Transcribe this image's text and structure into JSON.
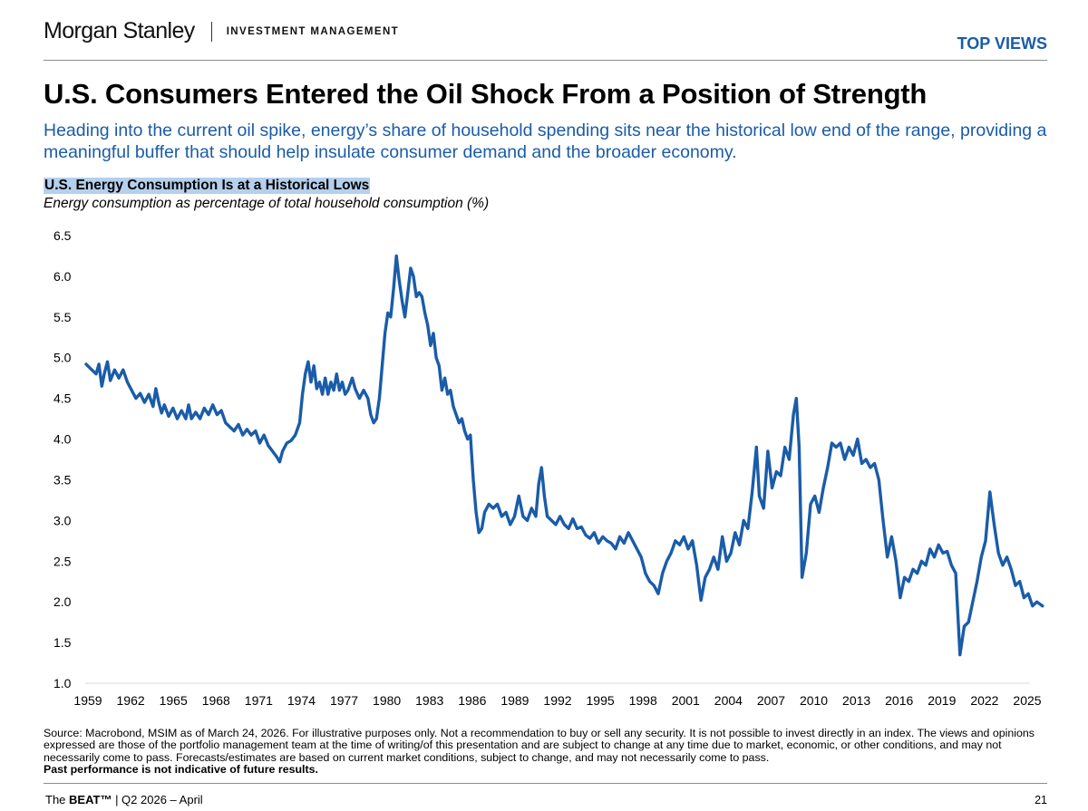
{
  "header": {
    "brand_name": "Morgan Stanley",
    "brand_sub": "INVESTMENT MANAGEMENT",
    "section": "TOP VIEWS"
  },
  "title": "U.S. Consumers Entered the Oil Shock From a Position of Strength",
  "subtitle": "Heading into the current oil spike, energy’s share of household spending sits near the historical low end of the range, providing a meaningful buffer that should help insulate consumer demand and the broader economy.",
  "chart_data": {
    "type": "line",
    "title": "U.S. Energy Consumption Is at a Historical Lows",
    "subtitle": "Energy consumption as percentage of total household consumption (%)",
    "xlabel": "",
    "ylabel": "",
    "xlim": [
      1959,
      2026.2
    ],
    "ylim": [
      1.0,
      6.5
    ],
    "yticks": [
      "6.5",
      "6.0",
      "5.5",
      "5.0",
      "4.5",
      "4.0",
      "3.5",
      "3.0",
      "2.5",
      "2.0",
      "1.5",
      "1.0"
    ],
    "xticks": [
      "1959",
      "1962",
      "1965",
      "1968",
      "1971",
      "1974",
      "1977",
      "1980",
      "1983",
      "1986",
      "1989",
      "1992",
      "1995",
      "1998",
      "2001",
      "2004",
      "2007",
      "2010",
      "2013",
      "2016",
      "2019",
      "2022",
      "2025"
    ],
    "grid": false,
    "legend": "none",
    "color": "#1a5ca8",
    "series": [
      {
        "points": [
          [
            1959.0,
            4.92
          ],
          [
            1959.4,
            4.85
          ],
          [
            1959.7,
            4.8
          ],
          [
            1959.9,
            4.92
          ],
          [
            1960.1,
            4.65
          ],
          [
            1960.3,
            4.82
          ],
          [
            1960.5,
            4.95
          ],
          [
            1960.7,
            4.72
          ],
          [
            1961.0,
            4.85
          ],
          [
            1961.3,
            4.75
          ],
          [
            1961.6,
            4.85
          ],
          [
            1961.9,
            4.7
          ],
          [
            1962.2,
            4.6
          ],
          [
            1962.5,
            4.5
          ],
          [
            1962.8,
            4.56
          ],
          [
            1963.1,
            4.45
          ],
          [
            1963.4,
            4.55
          ],
          [
            1963.7,
            4.4
          ],
          [
            1963.9,
            4.62
          ],
          [
            1964.1,
            4.45
          ],
          [
            1964.3,
            4.32
          ],
          [
            1964.5,
            4.42
          ],
          [
            1964.8,
            4.28
          ],
          [
            1965.1,
            4.38
          ],
          [
            1965.4,
            4.25
          ],
          [
            1965.7,
            4.35
          ],
          [
            1966.0,
            4.25
          ],
          [
            1966.2,
            4.42
          ],
          [
            1966.4,
            4.25
          ],
          [
            1966.7,
            4.33
          ],
          [
            1967.0,
            4.25
          ],
          [
            1967.3,
            4.38
          ],
          [
            1967.6,
            4.3
          ],
          [
            1967.9,
            4.42
          ],
          [
            1968.2,
            4.3
          ],
          [
            1968.5,
            4.35
          ],
          [
            1968.8,
            4.2
          ],
          [
            1969.1,
            4.15
          ],
          [
            1969.4,
            4.1
          ],
          [
            1969.7,
            4.18
          ],
          [
            1970.0,
            4.05
          ],
          [
            1970.3,
            4.12
          ],
          [
            1970.6,
            4.05
          ],
          [
            1970.9,
            4.1
          ],
          [
            1971.2,
            3.95
          ],
          [
            1971.5,
            4.05
          ],
          [
            1971.8,
            3.92
          ],
          [
            1972.1,
            3.85
          ],
          [
            1972.4,
            3.78
          ],
          [
            1972.6,
            3.72
          ],
          [
            1972.8,
            3.85
          ],
          [
            1973.1,
            3.95
          ],
          [
            1973.4,
            3.98
          ],
          [
            1973.7,
            4.05
          ],
          [
            1974.0,
            4.2
          ],
          [
            1974.2,
            4.55
          ],
          [
            1974.4,
            4.8
          ],
          [
            1974.6,
            4.95
          ],
          [
            1974.8,
            4.7
          ],
          [
            1975.0,
            4.9
          ],
          [
            1975.2,
            4.62
          ],
          [
            1975.4,
            4.7
          ],
          [
            1975.6,
            4.55
          ],
          [
            1975.8,
            4.75
          ],
          [
            1976.0,
            4.55
          ],
          [
            1976.2,
            4.7
          ],
          [
            1976.4,
            4.6
          ],
          [
            1976.6,
            4.8
          ],
          [
            1976.8,
            4.6
          ],
          [
            1977.0,
            4.7
          ],
          [
            1977.2,
            4.55
          ],
          [
            1977.4,
            4.6
          ],
          [
            1977.7,
            4.75
          ],
          [
            1977.9,
            4.62
          ],
          [
            1978.2,
            4.5
          ],
          [
            1978.5,
            4.6
          ],
          [
            1978.8,
            4.5
          ],
          [
            1979.0,
            4.3
          ],
          [
            1979.2,
            4.2
          ],
          [
            1979.4,
            4.25
          ],
          [
            1979.6,
            4.5
          ],
          [
            1979.8,
            4.9
          ],
          [
            1980.0,
            5.3
          ],
          [
            1980.2,
            5.55
          ],
          [
            1980.4,
            5.5
          ],
          [
            1980.6,
            5.85
          ],
          [
            1980.8,
            6.25
          ],
          [
            1981.0,
            5.95
          ],
          [
            1981.2,
            5.7
          ],
          [
            1981.4,
            5.5
          ],
          [
            1981.6,
            5.8
          ],
          [
            1981.8,
            6.1
          ],
          [
            1982.0,
            6.0
          ],
          [
            1982.2,
            5.75
          ],
          [
            1982.4,
            5.8
          ],
          [
            1982.6,
            5.75
          ],
          [
            1982.8,
            5.55
          ],
          [
            1983.0,
            5.4
          ],
          [
            1983.2,
            5.15
          ],
          [
            1983.4,
            5.3
          ],
          [
            1983.6,
            5.0
          ],
          [
            1983.8,
            4.9
          ],
          [
            1984.0,
            4.6
          ],
          [
            1984.2,
            4.75
          ],
          [
            1984.4,
            4.55
          ],
          [
            1984.6,
            4.6
          ],
          [
            1984.8,
            4.4
          ],
          [
            1985.0,
            4.3
          ],
          [
            1985.2,
            4.2
          ],
          [
            1985.4,
            4.25
          ],
          [
            1985.6,
            4.1
          ],
          [
            1985.8,
            4.0
          ],
          [
            1986.0,
            4.05
          ],
          [
            1986.2,
            3.5
          ],
          [
            1986.4,
            3.1
          ],
          [
            1986.6,
            2.85
          ],
          [
            1986.8,
            2.9
          ],
          [
            1987.0,
            3.1
          ],
          [
            1987.3,
            3.2
          ],
          [
            1987.6,
            3.15
          ],
          [
            1987.9,
            3.2
          ],
          [
            1988.2,
            3.05
          ],
          [
            1988.5,
            3.1
          ],
          [
            1988.8,
            2.95
          ],
          [
            1989.1,
            3.05
          ],
          [
            1989.4,
            3.3
          ],
          [
            1989.7,
            3.05
          ],
          [
            1990.0,
            3.0
          ],
          [
            1990.3,
            3.15
          ],
          [
            1990.6,
            3.05
          ],
          [
            1990.8,
            3.45
          ],
          [
            1991.0,
            3.65
          ],
          [
            1991.2,
            3.3
          ],
          [
            1991.4,
            3.05
          ],
          [
            1991.7,
            3.0
          ],
          [
            1992.0,
            2.95
          ],
          [
            1992.3,
            3.05
          ],
          [
            1992.6,
            2.95
          ],
          [
            1992.9,
            2.9
          ],
          [
            1993.2,
            3.02
          ],
          [
            1993.5,
            2.9
          ],
          [
            1993.8,
            2.92
          ],
          [
            1994.1,
            2.82
          ],
          [
            1994.4,
            2.78
          ],
          [
            1994.7,
            2.85
          ],
          [
            1995.0,
            2.72
          ],
          [
            1995.3,
            2.8
          ],
          [
            1995.6,
            2.75
          ],
          [
            1995.9,
            2.72
          ],
          [
            1996.2,
            2.65
          ],
          [
            1996.5,
            2.8
          ],
          [
            1996.8,
            2.72
          ],
          [
            1997.1,
            2.85
          ],
          [
            1997.4,
            2.75
          ],
          [
            1997.7,
            2.65
          ],
          [
            1998.0,
            2.55
          ],
          [
            1998.3,
            2.35
          ],
          [
            1998.6,
            2.25
          ],
          [
            1998.9,
            2.2
          ],
          [
            1999.2,
            2.1
          ],
          [
            1999.5,
            2.35
          ],
          [
            1999.8,
            2.5
          ],
          [
            2000.1,
            2.6
          ],
          [
            2000.4,
            2.75
          ],
          [
            2000.7,
            2.7
          ],
          [
            2001.0,
            2.8
          ],
          [
            2001.3,
            2.65
          ],
          [
            2001.6,
            2.75
          ],
          [
            2001.9,
            2.45
          ],
          [
            2002.2,
            2.02
          ],
          [
            2002.5,
            2.3
          ],
          [
            2002.8,
            2.4
          ],
          [
            2003.1,
            2.55
          ],
          [
            2003.4,
            2.4
          ],
          [
            2003.7,
            2.8
          ],
          [
            2004.0,
            2.5
          ],
          [
            2004.3,
            2.6
          ],
          [
            2004.6,
            2.85
          ],
          [
            2004.9,
            2.7
          ],
          [
            2005.2,
            3.0
          ],
          [
            2005.5,
            2.9
          ],
          [
            2005.8,
            3.35
          ],
          [
            2006.1,
            3.9
          ],
          [
            2006.3,
            3.3
          ],
          [
            2006.6,
            3.15
          ],
          [
            2006.9,
            3.85
          ],
          [
            2007.2,
            3.4
          ],
          [
            2007.5,
            3.6
          ],
          [
            2007.8,
            3.55
          ],
          [
            2008.1,
            3.9
          ],
          [
            2008.4,
            3.75
          ],
          [
            2008.7,
            4.3
          ],
          [
            2008.9,
            4.5
          ],
          [
            2009.1,
            3.9
          ],
          [
            2009.3,
            2.3
          ],
          [
            2009.6,
            2.6
          ],
          [
            2009.9,
            3.2
          ],
          [
            2010.2,
            3.3
          ],
          [
            2010.5,
            3.1
          ],
          [
            2010.8,
            3.4
          ],
          [
            2011.1,
            3.65
          ],
          [
            2011.4,
            3.95
          ],
          [
            2011.7,
            3.9
          ],
          [
            2012.0,
            3.95
          ],
          [
            2012.3,
            3.75
          ],
          [
            2012.6,
            3.9
          ],
          [
            2012.9,
            3.8
          ],
          [
            2013.2,
            4.0
          ],
          [
            2013.5,
            3.7
          ],
          [
            2013.8,
            3.75
          ],
          [
            2014.1,
            3.65
          ],
          [
            2014.4,
            3.7
          ],
          [
            2014.7,
            3.5
          ],
          [
            2015.0,
            3.0
          ],
          [
            2015.3,
            2.55
          ],
          [
            2015.6,
            2.8
          ],
          [
            2015.9,
            2.5
          ],
          [
            2016.2,
            2.05
          ],
          [
            2016.5,
            2.3
          ],
          [
            2016.8,
            2.25
          ],
          [
            2017.1,
            2.4
          ],
          [
            2017.4,
            2.35
          ],
          [
            2017.7,
            2.5
          ],
          [
            2018.0,
            2.45
          ],
          [
            2018.3,
            2.65
          ],
          [
            2018.6,
            2.55
          ],
          [
            2018.9,
            2.7
          ],
          [
            2019.2,
            2.6
          ],
          [
            2019.5,
            2.62
          ],
          [
            2019.8,
            2.45
          ],
          [
            2020.1,
            2.35
          ],
          [
            2020.4,
            1.35
          ],
          [
            2020.7,
            1.7
          ],
          [
            2021.0,
            1.75
          ],
          [
            2021.3,
            2.0
          ],
          [
            2021.6,
            2.25
          ],
          [
            2021.9,
            2.55
          ],
          [
            2022.2,
            2.75
          ],
          [
            2022.5,
            3.35
          ],
          [
            2022.8,
            2.95
          ],
          [
            2023.1,
            2.6
          ],
          [
            2023.4,
            2.45
          ],
          [
            2023.7,
            2.55
          ],
          [
            2024.0,
            2.4
          ],
          [
            2024.3,
            2.2
          ],
          [
            2024.6,
            2.25
          ],
          [
            2024.9,
            2.05
          ],
          [
            2025.2,
            2.1
          ],
          [
            2025.5,
            1.95
          ],
          [
            2025.8,
            2.0
          ],
          [
            2026.2,
            1.95
          ]
        ]
      }
    ]
  },
  "footnote": {
    "text": "Source: Macrobond, MSIM as of March 24, 2026. For illustrative purposes only. Not a recommendation to buy or sell any security. It is not possible to invest directly in an index. The views and opinions expressed are those of the portfolio management team at the time of writing/of this presentation and are subject to change at any time due to market, economic, or other conditions, and may not necessarily come to pass.  Forecasts/estimates are based on current market conditions, subject to change, and may not necessarily come to pass.",
    "bold": "Past performance is not indicative of future results."
  },
  "footer": {
    "left_prefix": "The ",
    "left_bold": "BEAT™",
    "left_rest": " | Q2 2026 – April",
    "page": "21"
  }
}
